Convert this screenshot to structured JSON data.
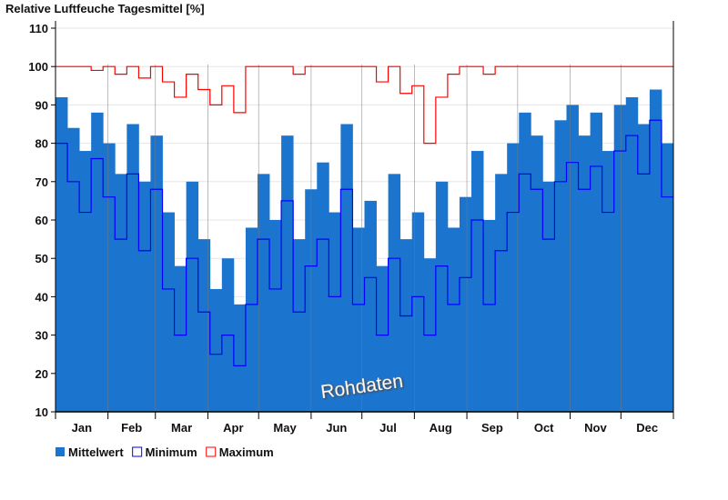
{
  "chart_data": {
    "type": "bar",
    "title": "Relative Luftfeuche Tagesmittel [%]",
    "xlabel": "",
    "ylabel": "",
    "ylim": [
      10,
      110
    ],
    "yticks": [
      10,
      20,
      30,
      40,
      50,
      60,
      70,
      80,
      90,
      100,
      110
    ],
    "months": [
      "Jan",
      "Feb",
      "Mar",
      "Apr",
      "May",
      "Jun",
      "Jul",
      "Aug",
      "Sep",
      "Oct",
      "Nov",
      "Dec"
    ],
    "resolution": "weekly (approximated from daily)",
    "grid": true,
    "legend_position": "bottom-left",
    "watermark": "Rohdaten",
    "series": [
      {
        "name": "Mittelwert",
        "style": "bar",
        "color": "#1b75cf",
        "values": [
          92,
          84,
          78,
          88,
          80,
          72,
          85,
          70,
          82,
          62,
          48,
          70,
          55,
          42,
          50,
          38,
          58,
          72,
          60,
          82,
          55,
          68,
          75,
          62,
          85,
          58,
          65,
          48,
          72,
          55,
          62,
          50,
          70,
          58,
          66,
          78,
          60,
          72,
          80,
          88,
          82,
          70,
          86,
          90,
          82,
          88,
          78,
          90,
          92,
          85,
          94,
          80
        ]
      },
      {
        "name": "Minimum",
        "style": "step-line",
        "color": "#0000ff",
        "values": [
          80,
          70,
          62,
          76,
          66,
          55,
          72,
          52,
          68,
          42,
          30,
          50,
          36,
          25,
          30,
          22,
          38,
          55,
          42,
          65,
          36,
          48,
          55,
          40,
          68,
          38,
          45,
          30,
          50,
          35,
          40,
          30,
          48,
          38,
          45,
          60,
          38,
          52,
          62,
          72,
          68,
          55,
          70,
          75,
          68,
          74,
          62,
          78,
          82,
          72,
          86,
          66
        ]
      },
      {
        "name": "Maximum",
        "style": "step-line",
        "color": "#ff0000",
        "values": [
          100,
          100,
          100,
          99,
          100,
          98,
          100,
          97,
          100,
          96,
          92,
          98,
          94,
          90,
          95,
          88,
          100,
          100,
          100,
          100,
          98,
          100,
          100,
          100,
          100,
          100,
          100,
          96,
          100,
          93,
          95,
          80,
          92,
          98,
          100,
          100,
          98,
          100,
          100,
          100,
          100,
          100,
          100,
          100,
          100,
          100,
          100,
          100,
          100,
          100,
          100,
          100
        ]
      }
    ]
  }
}
